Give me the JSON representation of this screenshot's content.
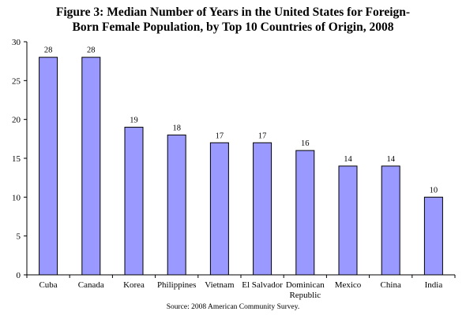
{
  "chart_data": {
    "type": "bar",
    "title_lines": [
      "Figure 3: Median Number of Years in the United States for Foreign-",
      "Born Female Population, by Top 10 Countries of Origin, 2008"
    ],
    "categories": [
      [
        "Cuba"
      ],
      [
        "Canada"
      ],
      [
        "Korea"
      ],
      [
        "Philippines"
      ],
      [
        "Vietnam"
      ],
      [
        "El Salvador"
      ],
      [
        "Dominican",
        "Republic"
      ],
      [
        "Mexico"
      ],
      [
        "China"
      ],
      [
        "India"
      ]
    ],
    "values": [
      28,
      28,
      19,
      18,
      17,
      17,
      16,
      14,
      14,
      10
    ],
    "data_labels": [
      "28",
      "28",
      "19",
      "18",
      "17",
      "17",
      "16",
      "14",
      "14",
      "10"
    ],
    "ylim": [
      0,
      30
    ],
    "yticks": [
      0,
      5,
      10,
      15,
      20,
      25,
      30
    ],
    "grid": false,
    "legend": "none",
    "colors": {
      "bar_fill": "#9999ff",
      "bar_stroke": "#000000",
      "axis": "#000000"
    },
    "source": "Source: 2008 American Community Survey."
  }
}
